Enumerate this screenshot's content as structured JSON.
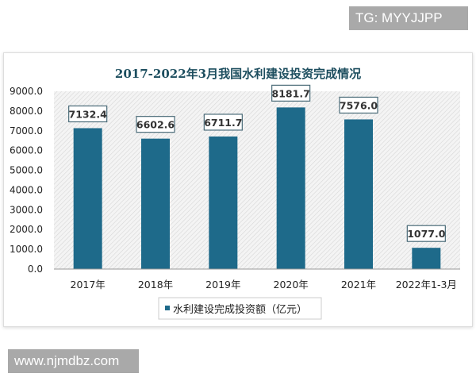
{
  "watermarks": {
    "top": "TG: MYYJJPP",
    "bottom": "www.njmdbz.com"
  },
  "chart_data": {
    "type": "bar",
    "title": "2017-2022年3月我国水利建设投资完成情况",
    "categories": [
      "2017年",
      "2018年",
      "2019年",
      "2020年",
      "2021年",
      "2022年1-3月"
    ],
    "series": [
      {
        "name": "水利建设完成投资额（亿元）",
        "values": [
          7132.4,
          6602.6,
          6711.7,
          8181.7,
          7576.0,
          1077.0
        ],
        "labels": [
          "7132.4",
          "6602.6",
          "6711.7",
          "8181.7",
          "7576.0",
          "1077.0"
        ]
      }
    ],
    "ylim": [
      0,
      9000
    ],
    "yticks": [
      "0.0",
      "1000.0",
      "2000.0",
      "3000.0",
      "4000.0",
      "5000.0",
      "6000.0",
      "7000.0",
      "8000.0",
      "9000.0"
    ],
    "legend": "bottom",
    "grid": false,
    "colors": {
      "bar": "#1e6a8a",
      "title": "#1d4e5f",
      "plot_bg": "hatched-gray"
    }
  }
}
